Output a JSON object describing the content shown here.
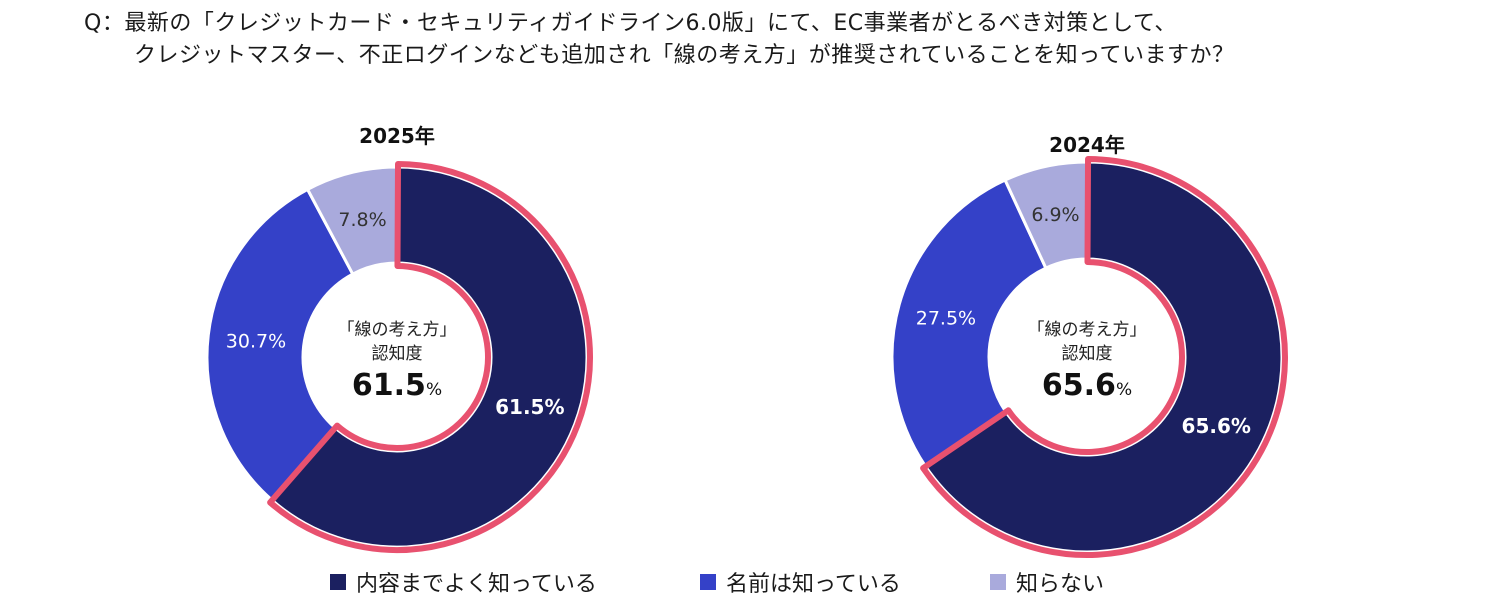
{
  "question": {
    "line1": "Q：最新の「クレジットカード・セキュリティガイドライン6.0版」にて、EC事業者がとるべき対策として、",
    "line2": "クレジットマスター、不正ログインなども追加され「線の考え方」が推奨されていることを知っていますか？"
  },
  "colors": {
    "dark_navy": "#1b2060",
    "blue": "#3441c8",
    "lavender": "#a9aadc",
    "highlight_border": "#e8516f"
  },
  "legend": [
    {
      "label": "内容までよく知っている",
      "color": "#1b2060"
    },
    {
      "label": "名前は知っている",
      "color": "#3441c8"
    },
    {
      "label": "知らない",
      "color": "#a9aadc"
    }
  ],
  "chart_data": [
    {
      "type": "pie",
      "title": "2025年",
      "categories": [
        "内容までよく知っている",
        "名前は知っている",
        "知らない"
      ],
      "values": [
        61.5,
        30.7,
        7.8
      ],
      "value_labels": [
        "61.5%",
        "30.7%",
        "7.8%"
      ],
      "center_label_line1": "「線の考え方」",
      "center_label_line2": "認知度",
      "center_value": "61.5",
      "center_unit": "%"
    },
    {
      "type": "pie",
      "title": "2024年",
      "categories": [
        "内容までよく知っている",
        "名前は知っている",
        "知らない"
      ],
      "values": [
        65.6,
        27.5,
        6.9
      ],
      "value_labels": [
        "65.6%",
        "27.5%",
        "6.9%"
      ],
      "center_label_line1": "「線の考え方」",
      "center_label_line2": "認知度",
      "center_value": "65.6",
      "center_unit": "%"
    }
  ]
}
